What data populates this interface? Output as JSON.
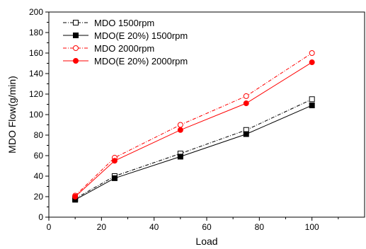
{
  "chart_data": {
    "type": "line",
    "xlabel": "Load",
    "ylabel": "MDO Flow(g/min)",
    "xlim": [
      0,
      120
    ],
    "ylim": [
      0,
      200
    ],
    "xticks": [
      0,
      20,
      40,
      60,
      80,
      100
    ],
    "yticks": [
      0,
      20,
      40,
      60,
      80,
      100,
      120,
      140,
      160,
      180,
      200
    ],
    "grid": false,
    "legend_position": "top-left",
    "x": [
      10,
      25,
      50,
      75,
      100
    ],
    "series": [
      {
        "name": "MDO 1500rpm",
        "values": [
          18,
          40,
          62,
          85,
          115
        ],
        "color": "#000000",
        "line_style": "dash-dot",
        "marker": "open-square"
      },
      {
        "name": "MDO(E 20%) 1500rpm",
        "values": [
          17,
          38,
          59,
          81,
          109
        ],
        "color": "#000000",
        "line_style": "solid",
        "marker": "filled-square"
      },
      {
        "name": "MDO 2000rpm",
        "values": [
          21,
          58,
          90,
          118,
          160
        ],
        "color": "#ff0000",
        "line_style": "dash-dot",
        "marker": "open-circle"
      },
      {
        "name": "MDO(E 20%) 2000rpm",
        "values": [
          20,
          55,
          85,
          111,
          151
        ],
        "color": "#ff0000",
        "line_style": "solid",
        "marker": "filled-circle"
      }
    ]
  }
}
